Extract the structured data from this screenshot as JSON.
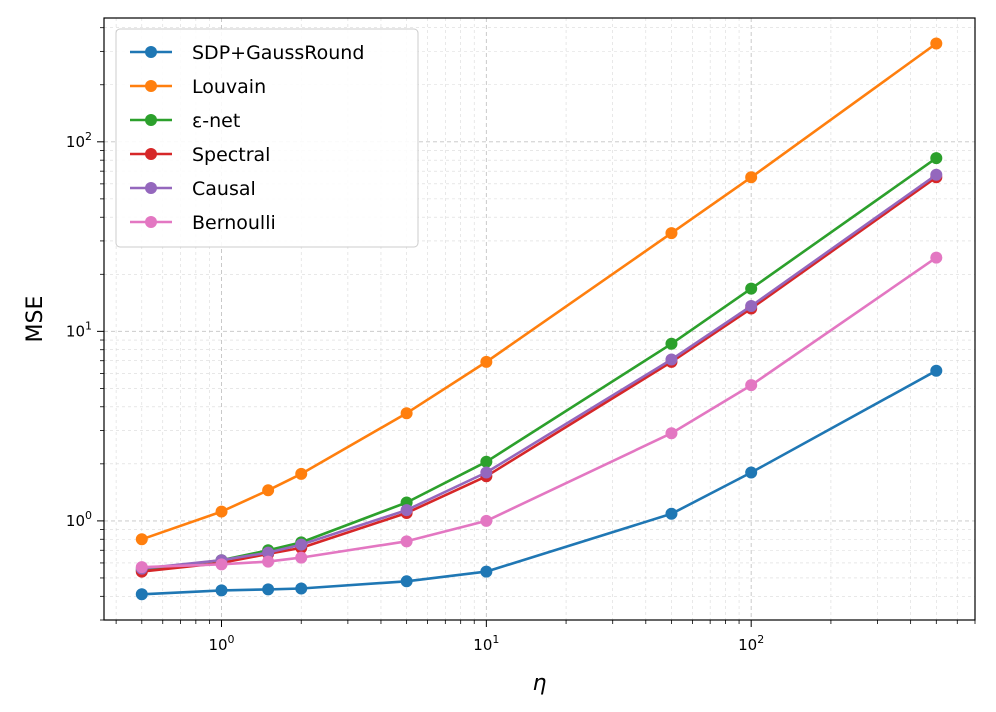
{
  "chart_data": {
    "type": "line",
    "xlabel": "η",
    "ylabel": "MSE",
    "xscale": "log",
    "yscale": "log",
    "xlim": [
      0.36,
      700
    ],
    "ylim": [
      0.3,
      450
    ],
    "grid": true,
    "legend_position": "top-left",
    "x_ticks": [
      {
        "value": 1,
        "base": "10",
        "exp": "0"
      },
      {
        "value": 10,
        "base": "10",
        "exp": "1"
      },
      {
        "value": 100,
        "base": "10",
        "exp": "2"
      }
    ],
    "y_ticks": [
      {
        "value": 1,
        "base": "10",
        "exp": "0"
      },
      {
        "value": 10,
        "base": "10",
        "exp": "1"
      },
      {
        "value": 100,
        "base": "10",
        "exp": "2"
      }
    ],
    "x": [
      0.5,
      1,
      1.5,
      2,
      5,
      10,
      50,
      100,
      500
    ],
    "series": [
      {
        "name": "SDP+GaussRound",
        "color": "#1f77b4",
        "values": [
          0.41,
          0.43,
          0.435,
          0.44,
          0.48,
          0.54,
          1.09,
          1.8,
          6.2
        ]
      },
      {
        "name": "Louvain",
        "color": "#ff7f0e",
        "values": [
          0.8,
          1.12,
          1.45,
          1.77,
          3.7,
          6.9,
          33,
          65,
          330
        ]
      },
      {
        "name": "ε-net",
        "color": "#2ca02c",
        "values": [
          0.55,
          0.62,
          0.7,
          0.77,
          1.25,
          2.05,
          8.6,
          16.8,
          82
        ]
      },
      {
        "name": "Spectral",
        "color": "#d62728",
        "values": [
          0.54,
          0.6,
          0.67,
          0.72,
          1.1,
          1.72,
          6.9,
          13.2,
          65
        ]
      },
      {
        "name": "Causal",
        "color": "#9467bd",
        "values": [
          0.56,
          0.62,
          0.68,
          0.75,
          1.14,
          1.8,
          7.1,
          13.6,
          67
        ]
      },
      {
        "name": "Bernoulli",
        "color": "#e377c2",
        "values": [
          0.57,
          0.59,
          0.61,
          0.64,
          0.78,
          1.0,
          2.9,
          5.2,
          24.5
        ]
      }
    ]
  }
}
